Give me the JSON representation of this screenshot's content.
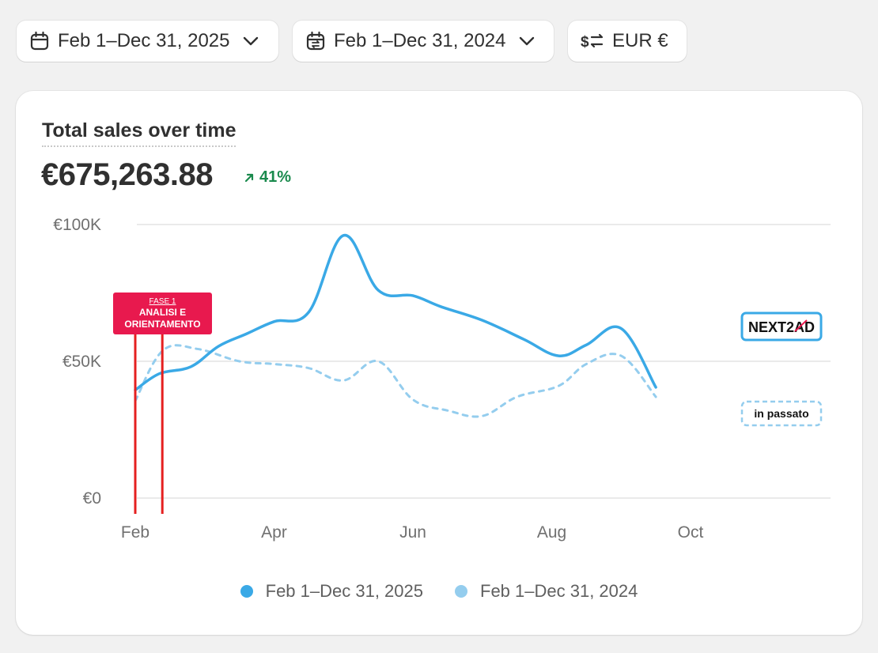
{
  "toolbar": {
    "date_range": "Feb 1–Dec 31, 2025",
    "compare_range": "Feb 1–Dec 31, 2024",
    "currency": "EUR €"
  },
  "card": {
    "title": "Total sales over time",
    "total": "€675,263.88",
    "change": "41%"
  },
  "colors": {
    "current": "#3aa9e6",
    "previous": "#94cdee",
    "annotation": "#e8194e",
    "marker_line": "#e52020",
    "up": "#1a8a4d"
  },
  "annotations": {
    "phase_title": "FASE 1",
    "phase_text_1": "ANALISI E",
    "phase_text_2": "ORIENTAMENTO",
    "brand_logo": "NEXT2AD",
    "past_label": "in passato"
  },
  "chart_data": {
    "type": "line",
    "title": "Total sales over time",
    "xlabel": "",
    "ylabel": "",
    "x_ticks": [
      "Feb",
      "Apr",
      "Jun",
      "Aug",
      "Oct"
    ],
    "y_ticks": [
      "€0",
      "€50K",
      "€100K"
    ],
    "ylim": [
      0,
      100000
    ],
    "grid": true,
    "legend_position": "bottom",
    "series": [
      {
        "name": "Feb 1–Dec 31, 2025",
        "style": "solid",
        "points": [
          [
            0,
            39500
          ],
          [
            0.35,
            45500
          ],
          [
            0.8,
            48000
          ],
          [
            1.2,
            55500
          ],
          [
            1.6,
            60000
          ],
          [
            2.0,
            64500
          ],
          [
            2.5,
            68000
          ],
          [
            3.0,
            96000
          ],
          [
            3.5,
            76000
          ],
          [
            4.0,
            74000
          ],
          [
            4.4,
            70000
          ],
          [
            5.0,
            65000
          ],
          [
            5.6,
            58000
          ],
          [
            6.1,
            52000
          ],
          [
            6.5,
            56000
          ],
          [
            7.0,
            62000
          ],
          [
            7.5,
            40500
          ]
        ]
      },
      {
        "name": "Feb 1–Dec 31, 2024",
        "style": "dashed",
        "points": [
          [
            0,
            35500
          ],
          [
            0.4,
            54000
          ],
          [
            0.9,
            54500
          ],
          [
            1.5,
            50000
          ],
          [
            2.0,
            49000
          ],
          [
            2.5,
            47500
          ],
          [
            3.0,
            43000
          ],
          [
            3.5,
            50000
          ],
          [
            4.0,
            36000
          ],
          [
            4.5,
            32000
          ],
          [
            5.0,
            30000
          ],
          [
            5.5,
            37000
          ],
          [
            6.1,
            41000
          ],
          [
            6.5,
            49000
          ],
          [
            7.0,
            52000
          ],
          [
            7.5,
            37000
          ]
        ]
      }
    ],
    "markers": [
      {
        "x": 0,
        "label": ""
      },
      {
        "x": 0.39,
        "label": ""
      }
    ]
  }
}
